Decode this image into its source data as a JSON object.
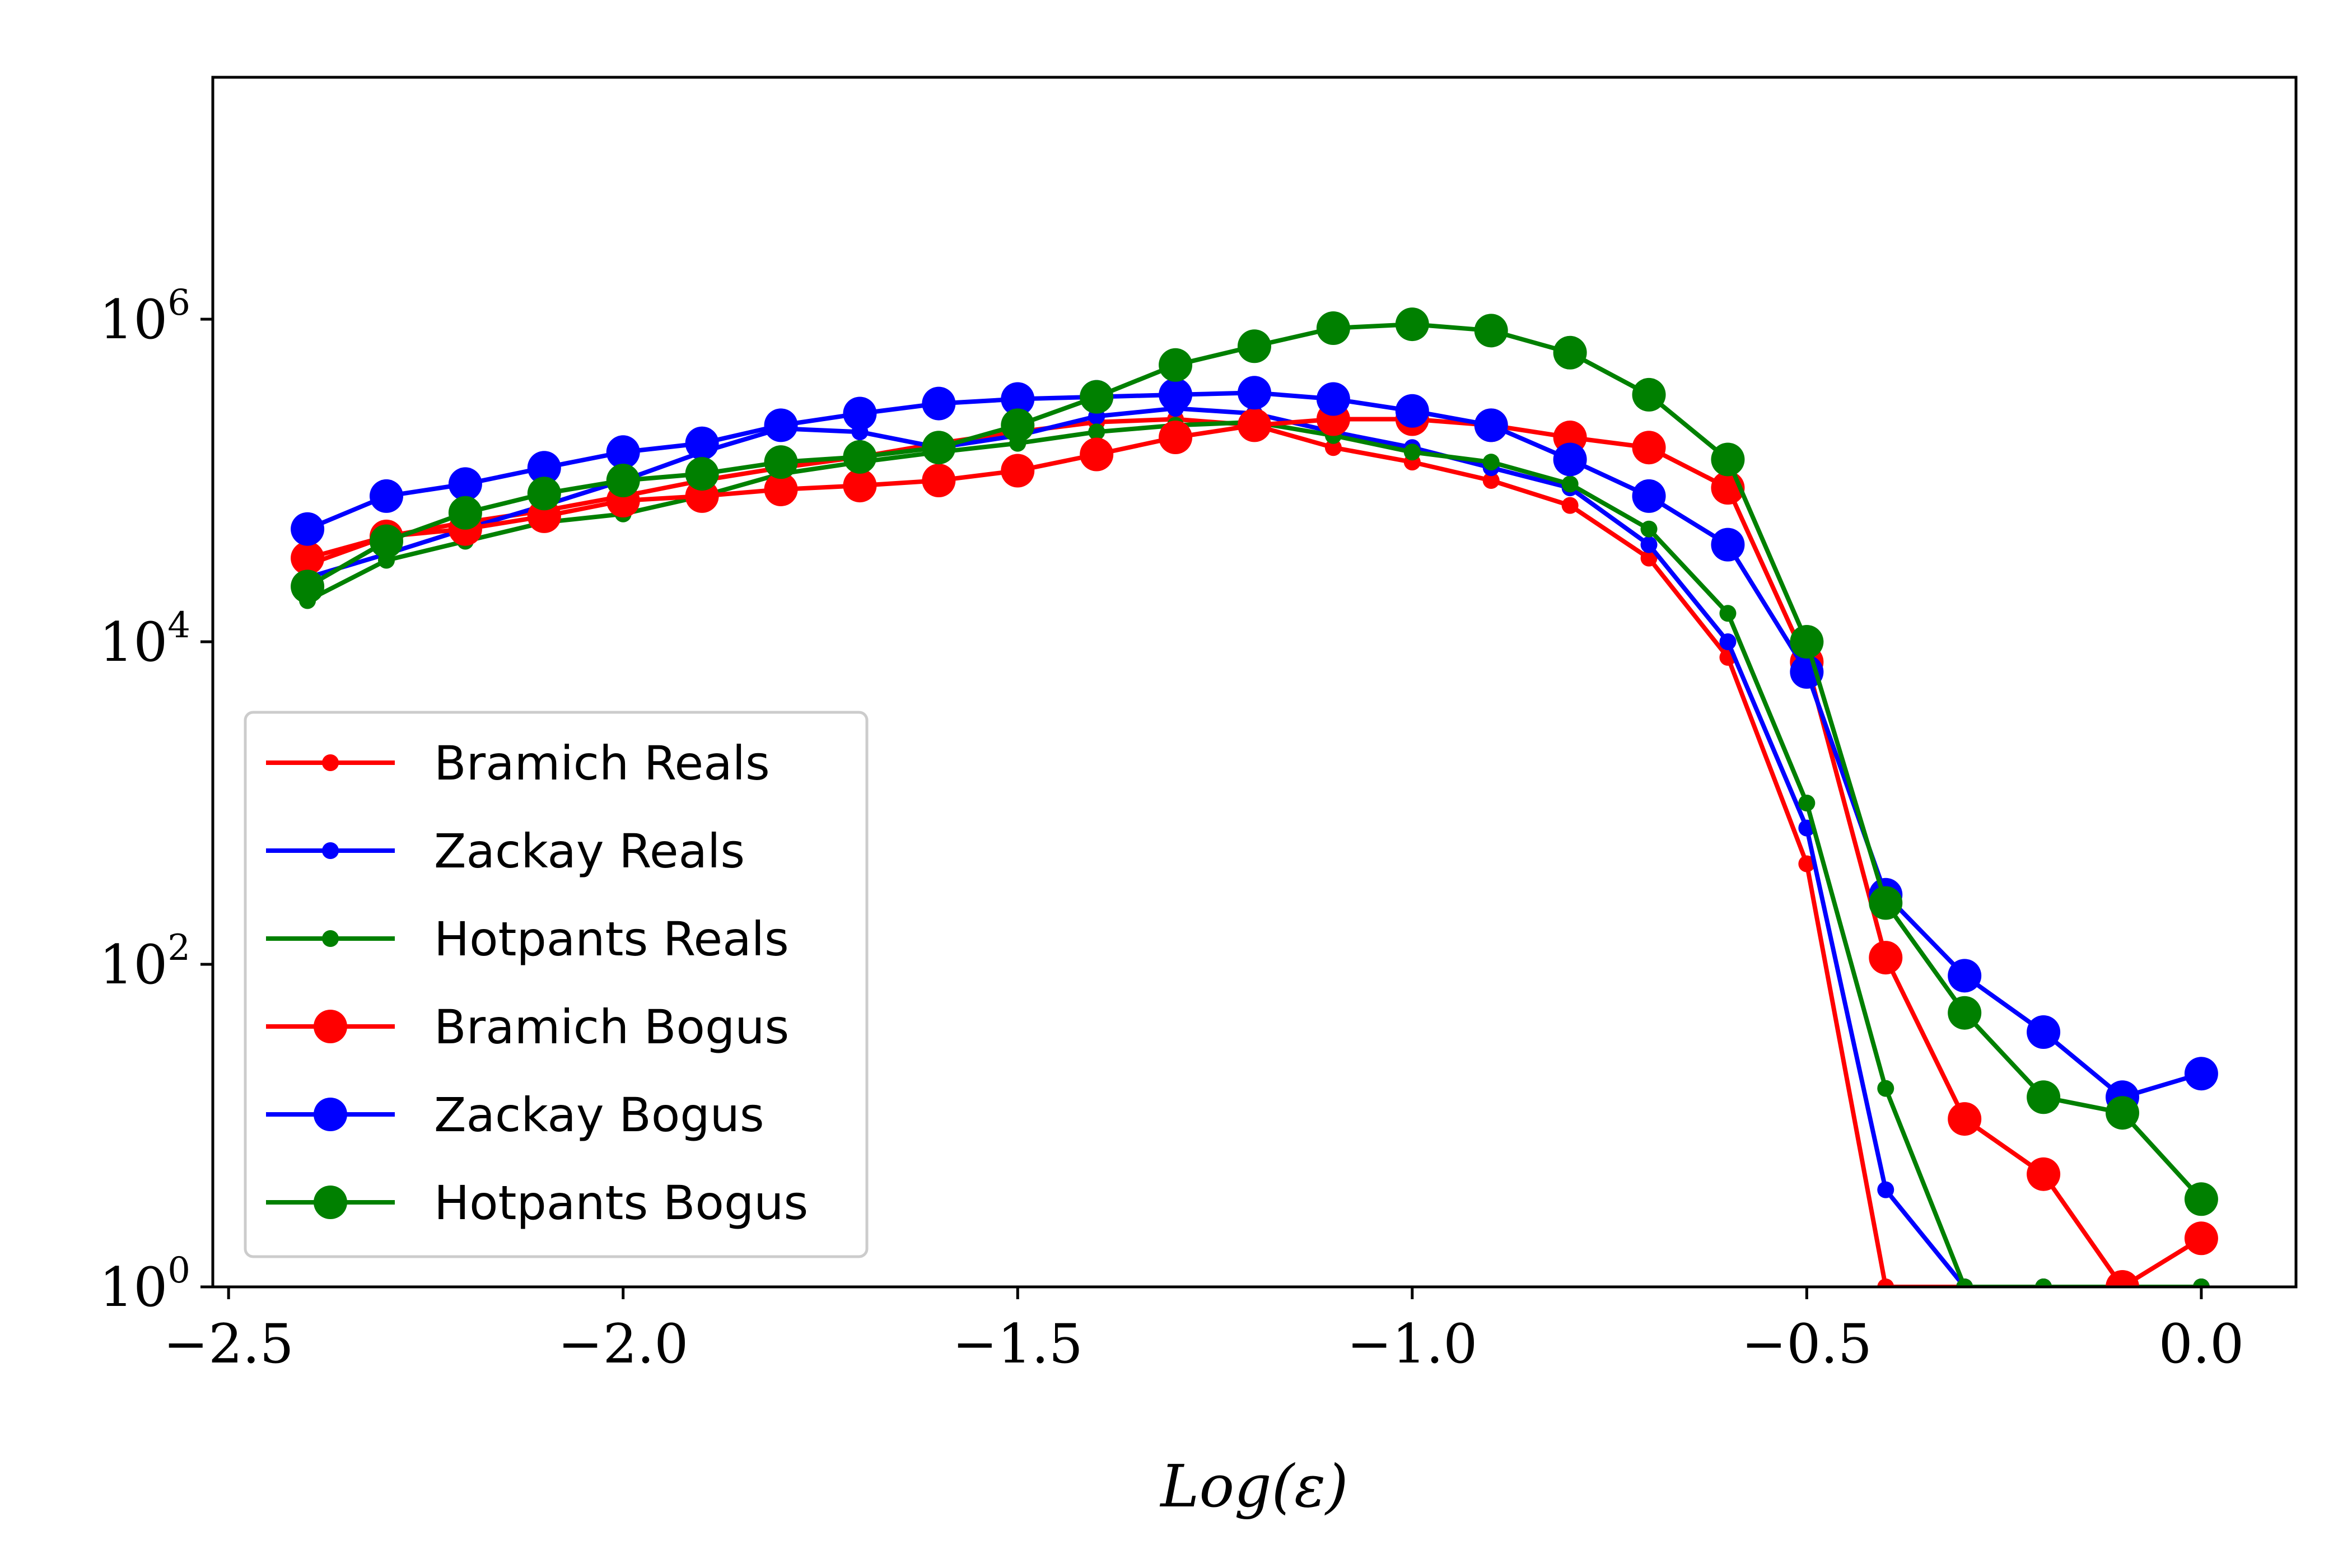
{
  "chart_data": {
    "type": "line",
    "title": "",
    "xlabel": "Log(ε)",
    "ylabel": "",
    "xlim": [
      -2.52,
      0.12
    ],
    "ylim_log10": [
      0,
      7.5
    ],
    "yscale": "log",
    "grid": false,
    "legend_position": "lower-left",
    "x_ticks": [
      {
        "value": -2.5,
        "label": "−2.5"
      },
      {
        "value": -2.0,
        "label": "−2.0"
      },
      {
        "value": -1.5,
        "label": "−1.5"
      },
      {
        "value": -1.0,
        "label": "−1.0"
      },
      {
        "value": -0.5,
        "label": "−0.5"
      },
      {
        "value": 0.0,
        "label": "0.0"
      }
    ],
    "y_ticks": [
      {
        "exp": 0,
        "base": "10",
        "sup": "0"
      },
      {
        "exp": 2,
        "base": "10",
        "sup": "2"
      },
      {
        "exp": 4,
        "base": "10",
        "sup": "4"
      },
      {
        "exp": 6,
        "base": "10",
        "sup": "6"
      }
    ],
    "x": [
      -2.4,
      -2.3,
      -2.2,
      -2.1,
      -2.0,
      -1.9,
      -1.8,
      -1.7,
      -1.6,
      -1.5,
      -1.4,
      -1.3,
      -1.2,
      -1.1,
      -1.0,
      -0.9,
      -0.8,
      -0.7,
      -0.6,
      -0.5,
      -0.4,
      -0.3,
      -0.2,
      -0.1,
      0.0
    ],
    "series": [
      {
        "name": "Bramich Reals",
        "color": "#ff0000",
        "marker": "small",
        "values": [
          30000,
          45000,
          55000,
          65000,
          80000,
          100000,
          120000,
          140000,
          170000,
          200000,
          230000,
          240000,
          220000,
          160000,
          130000,
          100000,
          70000,
          33000,
          8000,
          420,
          0,
          0,
          0,
          0,
          0
        ]
      },
      {
        "name": "Zackay Reals",
        "color": "#0000ff",
        "marker": "small",
        "values": [
          25000,
          35000,
          50000,
          70000,
          100000,
          150000,
          210000,
          200000,
          160000,
          190000,
          250000,
          280000,
          260000,
          200000,
          160000,
          120000,
          90000,
          40000,
          10000,
          700,
          4,
          1,
          1,
          0,
          1
        ]
      },
      {
        "name": "Hotpants Reals",
        "color": "#008000",
        "marker": "small",
        "values": [
          18000,
          32000,
          42000,
          55000,
          62000,
          80000,
          110000,
          130000,
          150000,
          170000,
          200000,
          220000,
          230000,
          190000,
          150000,
          130000,
          95000,
          50000,
          15000,
          1000,
          17,
          0,
          0,
          0,
          0
        ]
      },
      {
        "name": "Bramich Bogus",
        "color": "#ff0000",
        "marker": "large",
        "values": [
          33000,
          45000,
          50000,
          60000,
          75000,
          80000,
          88000,
          93000,
          100000,
          115000,
          145000,
          185000,
          220000,
          240000,
          240000,
          220000,
          185000,
          160000,
          90000,
          7500,
          110,
          11,
          5,
          0,
          2
        ]
      },
      {
        "name": "Zackay Bogus",
        "color": "#0000ff",
        "marker": "large",
        "values": [
          50000,
          80000,
          95000,
          120000,
          150000,
          170000,
          220000,
          260000,
          300000,
          320000,
          330000,
          340000,
          350000,
          320000,
          270000,
          220000,
          135000,
          80000,
          40000,
          6500,
          270,
          85,
          38,
          15,
          21
        ]
      },
      {
        "name": "Hotpants Bogus",
        "color": "#008000",
        "marker": "large",
        "values": [
          22000,
          42000,
          63000,
          83000,
          100000,
          110000,
          130000,
          140000,
          160000,
          220000,
          330000,
          520000,
          680000,
          880000,
          930000,
          850000,
          620000,
          340000,
          135000,
          10000,
          240,
          50,
          15,
          12,
          3.5
        ]
      }
    ]
  }
}
